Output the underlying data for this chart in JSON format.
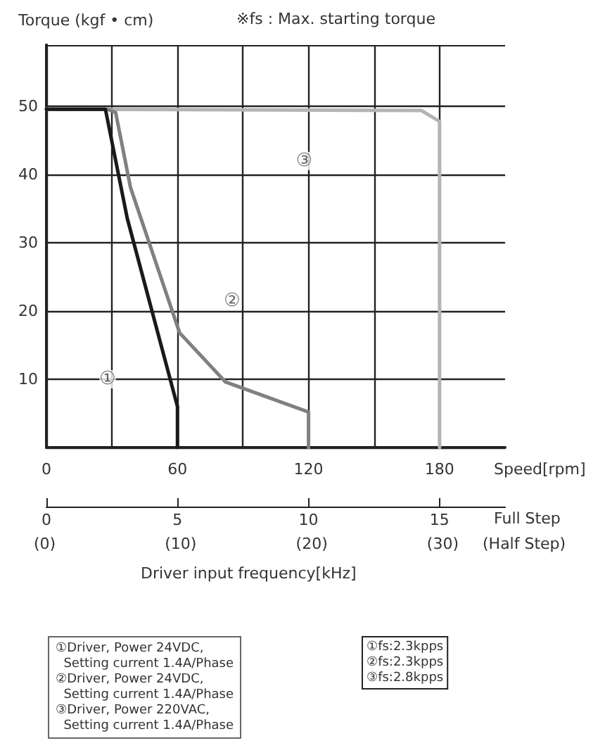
{
  "chart_data": {
    "type": "line",
    "ylabel": "Torque (kgf • cm)",
    "xlabel": "Speed[rpm]",
    "x2label": "Full Step",
    "xlim": [
      0,
      210
    ],
    "xticks": [
      0,
      {
        "value": 30,
        "label": null
      },
      60,
      {
        "value": 90,
        "label": null
      },
      120,
      {
        "value": 150,
        "label": null
      },
      180
    ],
    "x2lim": [
      0,
      17.5
    ],
    "x2ticks": [
      0,
      5,
      10,
      15
    ],
    "ylim": [
      0,
      59
    ],
    "yticks": [
      {
        "value": 0,
        "label": null
      },
      10,
      20,
      30,
      40,
      50
    ],
    "grid": true,
    "marker": "none",
    "line_style": "solid",
    "series": [
      {
        "color": "#1a1a1a",
        "x": [
          0,
          27,
          37,
          60,
          60
        ],
        "values": [
          49.6,
          49.6,
          33.6,
          6,
          0
        ]
      },
      {
        "color": "#808080",
        "x": [
          0,
          28,
          31.7,
          38.5,
          61,
          82,
          120,
          120
        ],
        "values": [
          49.6,
          49.6,
          49.1,
          38.1,
          16.8,
          9.6,
          5.2,
          0
        ]
      },
      {
        "color": "#b4b4b4",
        "x": [
          0,
          171.7,
          180,
          180
        ],
        "values": [
          49.6,
          49.4,
          47.8,
          0
        ]
      }
    ],
    "annotations": [
      {
        "text": "①",
        "x": 28,
        "y": 10
      },
      {
        "text": "②",
        "x": 85,
        "y": 21.5
      },
      {
        "text": "③",
        "x": 118,
        "y": 42
      },
      "※fs : Max. starting torque",
      "Driver input frequency[kHz]",
      "①Driver, Power 24VDC,\n  Setting current 1.4A/Phase\n②Driver, Power 24VDC,\n  Setting current 1.4A/Phase\n③Driver, Power 220VAC,\n  Setting current 1.4A/Phase",
      "①fs:2.3kpps\n②fs:2.3kpps\n③fs:2.8kpps",
      "(0)",
      "(10)",
      "(20)",
      "(30)",
      "(Half Step)"
    ]
  }
}
